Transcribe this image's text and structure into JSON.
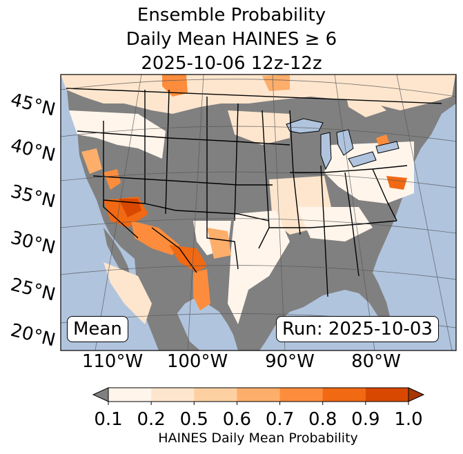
{
  "title": {
    "line1": "Ensemble Probability",
    "line2": "Daily Mean HAINES ≥ 6",
    "line3": "2025-10-06 12z-12z"
  },
  "map": {
    "lat_labels": [
      "45°N",
      "40°N",
      "35°N",
      "30°N",
      "25°N",
      "20°N"
    ],
    "lon_labels": [
      "110°W",
      "100°W",
      "90°W",
      "80°W"
    ],
    "ocean_color": "#b0c4de",
    "land_low_color": "#808080"
  },
  "labels": {
    "mean": "Mean",
    "run": "Run: 2025-10-03"
  },
  "colorbar": {
    "ticks": [
      "0.1",
      "0.2",
      "0.5",
      "0.6",
      "0.7",
      "0.8",
      "0.9",
      "1.0"
    ],
    "colors": [
      "#fff5eb",
      "#fee6ce",
      "#fdd0a2",
      "#fdae6b",
      "#fd8d3c",
      "#f16913",
      "#d94801",
      "#a63603"
    ],
    "under_color": "#808080",
    "label": "HAINES Daily Mean Probability"
  }
}
